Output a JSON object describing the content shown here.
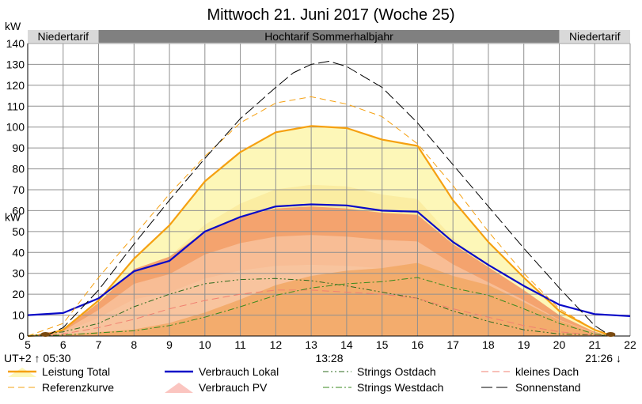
{
  "chart_data": {
    "type": "area",
    "title": "Mittwoch 21. Juni 2017 (Woche 25)",
    "ylabel_top": "kW",
    "ylabel_mid": "kW",
    "xlim": [
      5,
      22
    ],
    "ylim": [
      0,
      140
    ],
    "grid": true,
    "x_ticks": [
      5,
      6,
      7,
      8,
      9,
      10,
      11,
      12,
      13,
      14,
      15,
      16,
      17,
      18,
      19,
      20,
      21,
      22
    ],
    "y_ticks": [
      0,
      10,
      20,
      30,
      40,
      50,
      60,
      70,
      80,
      90,
      100,
      110,
      120,
      130,
      140
    ],
    "tariff_bands": [
      {
        "label": "Niedertarif",
        "from": 5,
        "to": 7
      },
      {
        "label": "Hochtarif Sommerhalbjahr",
        "from": 7,
        "to": 20
      },
      {
        "label": "Niedertarif",
        "from": 20,
        "to": 22
      }
    ],
    "annotations": {
      "timezone_sunrise": "UT+2 ↑ 05:30",
      "noon": "13:28",
      "sunset": "21:26 ↓"
    },
    "colors": {
      "leistung_total": "#f5a011",
      "leistung_fill": "#fdf7b8",
      "verbrauch_lokal": "#0a0ac8",
      "verbrauch_pv_fill": "#f4a36e",
      "verbrauch_pv_light": "#f9c8a5",
      "referenz": "#f5a011",
      "ostdach": "#2e6b1e",
      "westdach": "#3a8a1e",
      "kleines_dach": "#f08070",
      "sonnenstand": "#000000",
      "tariff_dark": "#808080",
      "tariff_light": "#d9d9d9",
      "grid": "#909090"
    },
    "series": [
      {
        "name": "Leistung Total",
        "x": [
          5,
          5.5,
          6,
          7,
          8,
          9,
          10,
          11,
          12,
          13,
          14,
          15,
          16,
          17,
          18,
          19,
          20,
          21,
          21.5
        ],
        "values": [
          0,
          0.5,
          3,
          17,
          37,
          53,
          74,
          88,
          97.5,
          100.5,
          99.5,
          94,
          91,
          65,
          45,
          28,
          12,
          3,
          0
        ]
      },
      {
        "name": "Verbrauch Lokal",
        "x": [
          5,
          6,
          7,
          8,
          9,
          10,
          11,
          12,
          13,
          14,
          15,
          16,
          17,
          18,
          19,
          20,
          21,
          22
        ],
        "values": [
          10,
          11,
          18,
          31,
          36,
          50,
          57,
          62,
          63,
          62.5,
          60,
          59.5,
          45,
          34,
          24,
          15,
          10.5,
          9.5
        ]
      },
      {
        "name": "Strings Ostdach",
        "x": [
          5,
          6,
          7,
          8,
          9,
          10,
          11,
          12,
          13,
          14,
          15,
          16,
          17,
          18,
          19,
          20,
          21,
          21.5
        ],
        "values": [
          0,
          2,
          6,
          14,
          20,
          25,
          27,
          27.5,
          26.5,
          24,
          21,
          18,
          12,
          7,
          3,
          1,
          0.5,
          0
        ]
      },
      {
        "name": "kleines Dach",
        "x": [
          5,
          6,
          7,
          8,
          9,
          10,
          11,
          12,
          13,
          14,
          15,
          16,
          17,
          18,
          19,
          20,
          21,
          21.5
        ],
        "values": [
          0,
          1,
          4,
          8,
          13,
          17,
          20,
          22,
          22,
          21,
          20,
          18,
          13,
          9,
          5,
          2,
          0.5,
          0
        ]
      },
      {
        "name": "Referenzkurve",
        "x": [
          5,
          6,
          7,
          8,
          9,
          10,
          11,
          12,
          13,
          14,
          15,
          16,
          17,
          18,
          19,
          20,
          21,
          21.5
        ],
        "values": [
          0,
          6,
          28,
          48,
          68,
          86,
          102,
          111.5,
          114.5,
          111,
          105,
          92,
          72,
          50,
          30,
          13,
          3,
          0
        ]
      },
      {
        "name": "Verbrauch PV",
        "x": [
          5,
          6,
          7,
          8,
          9,
          10,
          11,
          12,
          13,
          14,
          15,
          16,
          17,
          18,
          19,
          20,
          21,
          21.5
        ],
        "values": [
          0,
          3,
          16,
          32,
          38,
          50,
          57,
          61,
          62,
          61,
          59,
          58,
          44,
          33,
          22,
          10,
          2,
          0
        ]
      },
      {
        "name": "Strings Westdach",
        "x": [
          5,
          6,
          7,
          8,
          9,
          10,
          11,
          12,
          13,
          14,
          15,
          16,
          17,
          18,
          19,
          20,
          21,
          21.5
        ],
        "values": [
          0,
          0.5,
          1.5,
          2.5,
          5,
          9,
          14,
          19.5,
          23,
          25,
          26,
          28,
          23,
          19.5,
          13,
          6,
          1,
          0
        ]
      },
      {
        "name": "Sonnenstand",
        "x": [
          5.5,
          6,
          7,
          8,
          9,
          10,
          11,
          12,
          12.5,
          13,
          13.5,
          14,
          15,
          16,
          17,
          18,
          19,
          20,
          21,
          21.45
        ],
        "values": [
          0,
          4,
          22,
          44,
          65,
          85,
          104,
          119,
          126,
          130,
          131.5,
          129,
          119,
          102,
          82,
          62,
          42,
          23,
          5,
          0
        ]
      }
    ],
    "legend": [
      {
        "label": "Leistung Total",
        "key": "leistung"
      },
      {
        "label": "Verbrauch Lokal",
        "key": "verbrauch"
      },
      {
        "label": "Strings Ostdach",
        "key": "ostdach"
      },
      {
        "label": "kleines Dach",
        "key": "kleines"
      },
      {
        "label": "Referenzkurve",
        "key": "referenz"
      },
      {
        "label": "Verbrauch PV",
        "key": "verbrauchpv"
      },
      {
        "label": "Strings Westdach",
        "key": "westdach"
      },
      {
        "label": "Sonnenstand",
        "key": "sonne"
      }
    ]
  }
}
